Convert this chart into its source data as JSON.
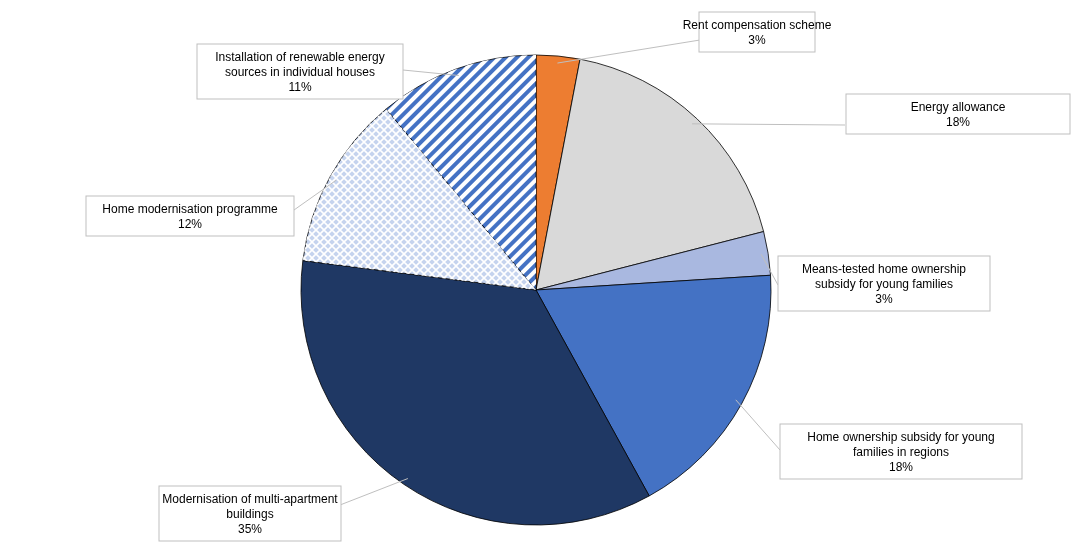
{
  "chart_data": {
    "type": "pie",
    "categories": [
      "Rent compensation scheme",
      "Energy allowance",
      "Means-tested home ownership subsidy for young families",
      "Home ownership subsidy for young families in regions",
      "Modernisation of multi-apartment buildings",
      "Home modernisation programme",
      "Installation of renewable energy sources in individual houses"
    ],
    "values": [
      3,
      18,
      3,
      18,
      35,
      12,
      11
    ],
    "value_labels": [
      "3%",
      "18%",
      "3%",
      "18%",
      "35%",
      "12%",
      "11%"
    ],
    "colors": [
      "#ed7d31",
      "#d9d9d9",
      "#a9b8e0",
      "#4472c4",
      "#1f3864",
      "#c5d3ee",
      "#4472c4"
    ]
  }
}
